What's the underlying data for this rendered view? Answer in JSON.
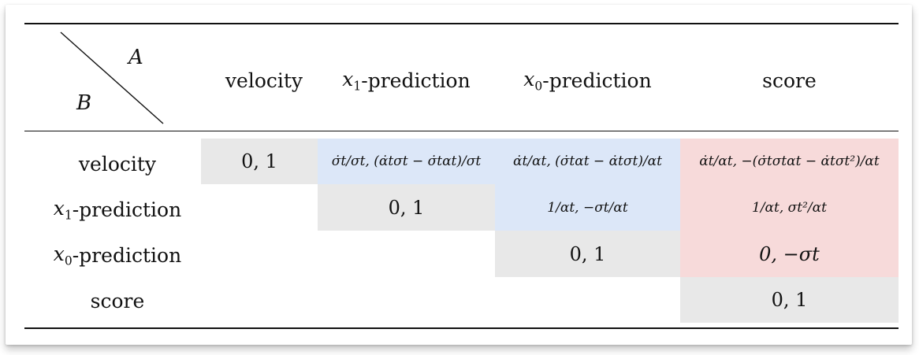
{
  "header": {
    "corner_a": "A",
    "corner_b": "B",
    "columns": [
      "velocity",
      "x1-prediction",
      "x0-prediction",
      "score"
    ]
  },
  "rows": [
    {
      "label": "velocity",
      "cells": [
        "0, 1",
        "σ̇t/σt, (α̇tσt − σ̇tαt)/σt",
        "α̇t/αt, (σ̇tαt − α̇tσt)/αt",
        "α̇t/αt, −(σ̇tσtαt − α̇tσt²)/αt"
      ]
    },
    {
      "label": "x1-prediction",
      "cells": [
        "",
        "0, 1",
        "1/αt, −σt/αt",
        "1/αt, σt²/αt"
      ]
    },
    {
      "label": "x0-prediction",
      "cells": [
        "",
        "",
        "0, 1",
        "0, −σt"
      ]
    },
    {
      "label": "score",
      "cells": [
        "",
        "",
        "",
        "0, 1"
      ]
    }
  ],
  "colors": {
    "diag_gray": "#e8e8e8",
    "blue": "#dce7f8",
    "red": "#f7dada"
  }
}
